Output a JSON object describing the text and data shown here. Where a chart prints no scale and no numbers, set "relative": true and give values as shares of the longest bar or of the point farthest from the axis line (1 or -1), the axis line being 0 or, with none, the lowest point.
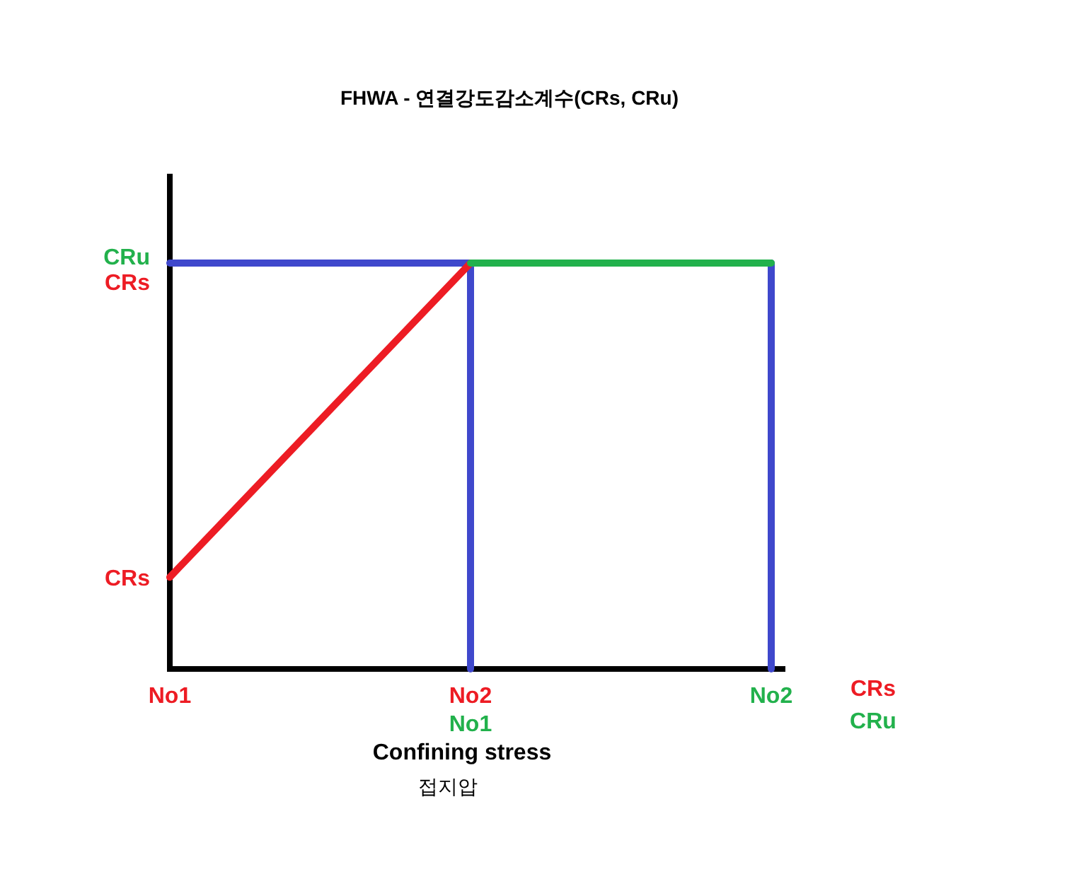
{
  "chart_data": {
    "type": "line",
    "title": "FHWA - 연결강도감소계수(CRs, CRu)",
    "xlabel": "Confining stress",
    "relative": true,
    "categories": [
      "No1",
      "No2\nNo1",
      "No2"
    ],
    "series": [
      {
        "color": "#3f48cc",
        "x": [
          "No1",
          "No2\nNo1",
          "No2\nNo1"
        ],
        "values": [
          1,
          1,
          0
        ]
      },
      {
        "color": "#3f48cc",
        "x": [
          "No2",
          "No2"
        ],
        "values": [
          1,
          0
        ]
      },
      {
        "name": "CRs",
        "color": "#ed1c24",
        "values": [
          0.226,
          1,
          null
        ]
      },
      {
        "name": "CRu",
        "color": "#22b14c",
        "values": [
          null,
          1,
          1
        ]
      }
    ],
    "annotations": [
      "접지압",
      "CRu",
      "CRs",
      "CRs"
    ],
    "legend": "bottom right"
  }
}
